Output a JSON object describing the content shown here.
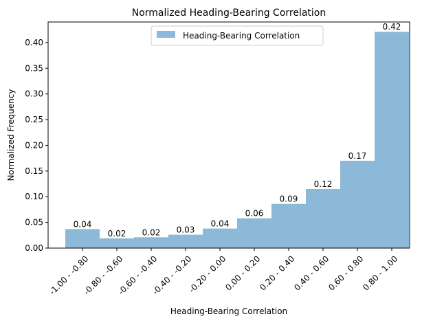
{
  "chart_data": {
    "type": "bar",
    "title": "Normalized Heading-Bearing Correlation",
    "xlabel": "Heading-Bearing Correlation",
    "ylabel": "Normalized Frequency",
    "categories": [
      "-1.00 - -0.80",
      "-0.80 - -0.60",
      "-0.60 - -0.40",
      "-0.40 - -0.20",
      "-0.20 - 0.00",
      "0.00 - 0.20",
      "0.20 - 0.40",
      "0.40 - 0.60",
      "0.60 - 0.80",
      "0.80 - 1.00"
    ],
    "series": [
      {
        "name": "Heading-Bearing Correlation",
        "values": [
          0.037,
          0.019,
          0.021,
          0.026,
          0.038,
          0.058,
          0.086,
          0.115,
          0.17,
          0.421
        ],
        "labels": [
          "0.04",
          "0.02",
          "0.02",
          "0.03",
          "0.04",
          "0.06",
          "0.09",
          "0.12",
          "0.17",
          "0.42"
        ],
        "color": "#8db9d9"
      }
    ],
    "ylim": [
      0,
      0.44
    ],
    "yticks": [
      0.0,
      0.05,
      0.1,
      0.15,
      0.2,
      0.25,
      0.3,
      0.35,
      0.4
    ],
    "ytick_labels": [
      "0.00",
      "0.05",
      "0.10",
      "0.15",
      "0.20",
      "0.25",
      "0.30",
      "0.35",
      "0.40"
    ],
    "grid": false,
    "legend": "top-center"
  }
}
